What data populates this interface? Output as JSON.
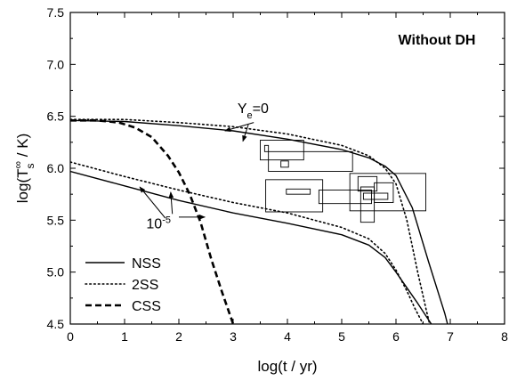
{
  "chart_data": {
    "type": "line",
    "title": "Without DH",
    "xlabel": {
      "pre": "log(t / yr)"
    },
    "ylabel": {
      "pre": "log(T",
      "sub": "s",
      "sup": "∞",
      "post": " / K)"
    },
    "xlim": [
      0,
      8
    ],
    "ylim": [
      4.5,
      7.5
    ],
    "xticks": [
      "0",
      "1",
      "2",
      "3",
      "4",
      "5",
      "6",
      "7",
      "8"
    ],
    "yticks": [
      "4.5",
      "5.0",
      "5.5",
      "6.0",
      "6.5",
      "7.0",
      "7.5"
    ],
    "legend_position": "bottom-left",
    "legend": [
      {
        "label": "NSS",
        "style": "solid"
      },
      {
        "label": "2SS",
        "style": "dotted"
      },
      {
        "label": "CSS",
        "style": "dashed"
      }
    ],
    "series": [
      {
        "name": "NSS",
        "style": "solid",
        "x": [
          0,
          1,
          2,
          3,
          4,
          5,
          5.5,
          5.8,
          6.0,
          6.3,
          6.6,
          6.9,
          6.95
        ],
        "y": [
          6.46,
          6.45,
          6.41,
          6.36,
          6.28,
          6.18,
          6.1,
          6.02,
          5.93,
          5.62,
          5.1,
          4.6,
          4.5
        ]
      },
      {
        "style": "dotted",
        "x": [
          0,
          1,
          2,
          3,
          4,
          5,
          5.5,
          5.8,
          6.0,
          6.2,
          6.4,
          6.55,
          6.62
        ],
        "y": [
          6.47,
          6.47,
          6.44,
          6.4,
          6.33,
          6.22,
          6.12,
          6.0,
          5.85,
          5.5,
          5.0,
          4.65,
          4.5
        ]
      },
      {
        "style": "solid",
        "x": [
          0,
          1,
          2,
          3,
          4,
          5,
          5.5,
          5.8,
          6.0,
          6.2,
          6.4,
          6.55,
          6.65
        ],
        "y": [
          5.97,
          5.83,
          5.69,
          5.57,
          5.47,
          5.36,
          5.26,
          5.14,
          5.0,
          4.85,
          4.7,
          4.58,
          4.5
        ]
      },
      {
        "style": "dotted",
        "x": [
          0,
          1,
          2,
          3,
          4,
          5,
          5.5,
          5.8,
          6.0,
          6.2,
          6.35,
          6.45,
          6.5
        ],
        "y": [
          6.06,
          5.92,
          5.79,
          5.67,
          5.57,
          5.43,
          5.32,
          5.18,
          5.02,
          4.82,
          4.65,
          4.55,
          4.5
        ]
      },
      {
        "name": "CSS",
        "style": "dashed",
        "x": [
          0,
          0.5,
          0.9,
          1.2,
          1.5,
          1.8,
          2.0,
          2.2,
          2.4,
          2.6,
          2.8,
          3.0
        ],
        "y": [
          6.46,
          6.46,
          6.44,
          6.39,
          6.3,
          6.12,
          5.96,
          5.75,
          5.48,
          5.12,
          4.8,
          4.5
        ]
      }
    ],
    "data_boxes": [
      {
        "x": [
          3.5,
          4.3
        ],
        "y": [
          6.08,
          6.27
        ]
      },
      {
        "x": [
          3.58,
          3.65
        ],
        "y": [
          6.16,
          6.22
        ]
      },
      {
        "x": [
          3.88,
          4.02
        ],
        "y": [
          6.01,
          6.07
        ]
      },
      {
        "x": [
          3.65,
          5.2
        ],
        "y": [
          5.97,
          6.16
        ]
      },
      {
        "x": [
          3.6,
          4.65
        ],
        "y": [
          5.58,
          5.89
        ]
      },
      {
        "x": [
          3.98,
          4.42
        ],
        "y": [
          5.75,
          5.8
        ]
      },
      {
        "x": [
          4.58,
          5.55
        ],
        "y": [
          5.66,
          5.79
        ]
      },
      {
        "x": [
          5.15,
          6.55
        ],
        "y": [
          5.59,
          5.95
        ]
      },
      {
        "x": [
          5.3,
          5.65
        ],
        "y": [
          5.78,
          5.92
        ]
      },
      {
        "x": [
          5.35,
          5.6
        ],
        "y": [
          5.48,
          5.82
        ]
      },
      {
        "x": [
          5.6,
          5.95
        ],
        "y": [
          5.67,
          5.86
        ]
      },
      {
        "x": [
          5.4,
          5.85
        ],
        "y": [
          5.7,
          5.76
        ]
      }
    ],
    "annotations": [
      {
        "id": "ye0",
        "text": {
          "pre": "Y",
          "sub": "e",
          "post": "=0"
        },
        "anchor": [
          3.08,
          6.53
        ],
        "arrows": [
          {
            "from": [
              3.38,
              6.44
            ],
            "to": [
              2.85,
              6.36
            ]
          },
          {
            "from": [
              3.28,
              6.42
            ],
            "to": [
              3.18,
              6.26
            ]
          }
        ]
      },
      {
        "id": "ye5",
        "text": {
          "pre": "10",
          "sup": "-5"
        },
        "anchor": [
          1.4,
          5.42
        ],
        "arrows": [
          {
            "from": [
              1.75,
              5.52
            ],
            "to": [
              1.28,
              5.82
            ]
          },
          {
            "from": [
              1.88,
              5.56
            ],
            "to": [
              1.85,
              5.77
            ]
          },
          {
            "from": [
              2.0,
              5.53
            ],
            "to": [
              2.48,
              5.53
            ]
          }
        ]
      }
    ]
  }
}
